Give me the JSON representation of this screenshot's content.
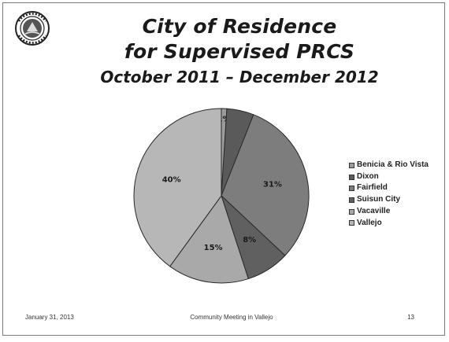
{
  "slide": {
    "title_line1": "City of Residence",
    "title_line2": "for Supervised PRCS",
    "subtitle": "October 2011 – December 2012",
    "footer_left": "January 31, 2013",
    "footer_center": "Community Meeting in Vallejo",
    "footer_right": "13",
    "seal_icon": "city-seal-logo"
  },
  "chart_data": {
    "type": "pie",
    "title": "City of Residence for Supervised PRCS",
    "subtitle": "October 2011 – December 2012",
    "series": [
      {
        "name": "Benicia & Rio Vista",
        "value": 1,
        "label": "1%",
        "color": "#9c9c9c"
      },
      {
        "name": "Dixon",
        "value": 5,
        "label": "",
        "color": "#5a5a5a"
      },
      {
        "name": "Fairfield",
        "value": 31,
        "label": "31%",
        "color": "#7d7d7d"
      },
      {
        "name": "Suisun City",
        "value": 8,
        "label": "8%",
        "color": "#606060"
      },
      {
        "name": "Vacaville",
        "value": 15,
        "label": "15%",
        "color": "#a9a9a9"
      },
      {
        "name": "Vallejo",
        "value": 40,
        "label": "40%",
        "color": "#b7b7b7"
      }
    ],
    "legend_position": "right"
  }
}
